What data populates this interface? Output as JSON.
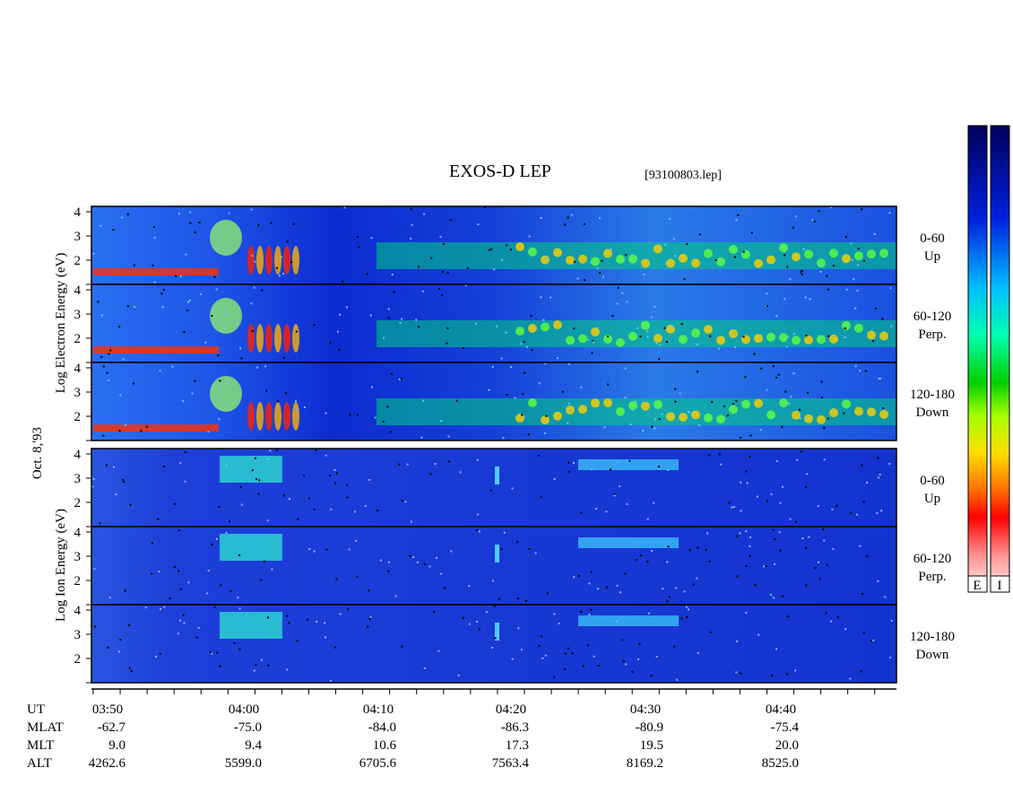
{
  "header": {
    "title": "EXOS-D LEP",
    "file": "[93100803.lep]"
  },
  "date": "Oct. 8,'93",
  "electron_axis_label": "Log Electron Energy (eV)",
  "ion_axis_label": "Log Ion Energy (eV)",
  "y_tick_labels": [
    "4",
    "3",
    "2"
  ],
  "panels": [
    {
      "range": "0-60",
      "direction": "Up"
    },
    {
      "range": "60-120",
      "direction": "Perp."
    },
    {
      "range": "120-180",
      "direction": "Down"
    }
  ],
  "colorbar_labels": [
    "E",
    "I"
  ],
  "orbit_table": {
    "rows": [
      {
        "label": "UT",
        "values": [
          "03:50",
          "04:00",
          "04:10",
          "04:20",
          "04:30",
          "04:40"
        ]
      },
      {
        "label": "MLAT",
        "values": [
          "-62.7",
          "-75.0",
          "-84.0",
          "-86.3",
          "-80.9",
          "-75.4"
        ]
      },
      {
        "label": "MLT",
        "values": [
          "9.0",
          "9.4",
          "10.6",
          "17.3",
          "19.5",
          "20.0"
        ]
      },
      {
        "label": "ALT",
        "values": [
          "4262.6",
          "5599.0",
          "6705.6",
          "7563.4",
          "8169.2",
          "8525.0"
        ]
      }
    ]
  }
}
